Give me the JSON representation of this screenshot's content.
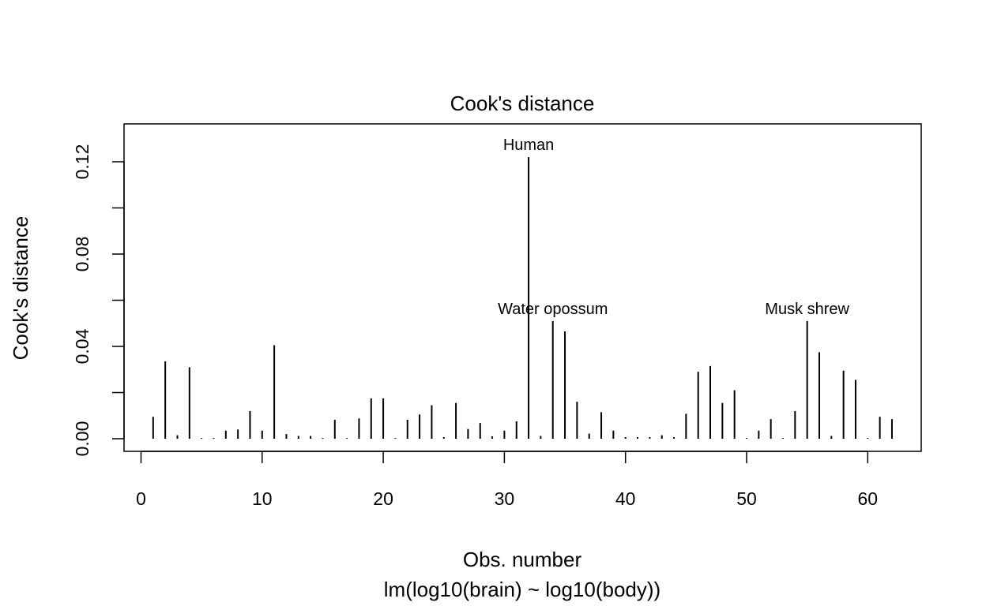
{
  "chart_data": {
    "type": "bar",
    "title": "Cook's distance",
    "xlabel": "Obs. number",
    "subtitle": "lm(log10(brain) ~ log10(body))",
    "ylabel": "Cook's distance",
    "xlim": [
      0,
      62
    ],
    "ylim": [
      0,
      0.12
    ],
    "xticks": [
      0,
      10,
      20,
      30,
      40,
      50,
      60
    ],
    "yticks": [
      0.0,
      0.04,
      0.08,
      0.12
    ],
    "ytick_labels": [
      "0.00",
      "0.04",
      "0.08",
      "0.12"
    ],
    "yminor_ticks": [
      0.02,
      0.06,
      0.1
    ],
    "grid": false,
    "x": [
      1,
      2,
      3,
      4,
      5,
      6,
      7,
      8,
      9,
      10,
      11,
      12,
      13,
      14,
      15,
      16,
      17,
      18,
      19,
      20,
      21,
      22,
      23,
      24,
      25,
      26,
      27,
      28,
      29,
      30,
      31,
      32,
      33,
      34,
      35,
      36,
      37,
      38,
      39,
      40,
      41,
      42,
      43,
      44,
      45,
      46,
      47,
      48,
      49,
      50,
      51,
      52,
      53,
      54,
      55,
      56,
      57,
      58,
      59,
      60,
      61,
      62
    ],
    "values": [
      0.0095,
      0.0335,
      0.0015,
      0.031,
      0.0003,
      0.0003,
      0.0035,
      0.004,
      0.012,
      0.0035,
      0.0405,
      0.002,
      0.0012,
      0.0012,
      0.0003,
      0.0082,
      0.0003,
      0.0088,
      0.0175,
      0.0175,
      0.0003,
      0.0082,
      0.0105,
      0.0145,
      0.0007,
      0.0155,
      0.0042,
      0.0068,
      0.001,
      0.0035,
      0.0075,
      0.122,
      0.0012,
      0.051,
      0.0465,
      0.016,
      0.0022,
      0.0115,
      0.0035,
      0.0007,
      0.0007,
      0.0007,
      0.0015,
      0.0007,
      0.0108,
      0.029,
      0.0315,
      0.0155,
      0.021,
      0.0003,
      0.0035,
      0.0085,
      0.0003,
      0.012,
      0.051,
      0.0375,
      0.0012,
      0.0295,
      0.0255,
      0.0003,
      0.0095,
      0.0085
    ],
    "annotations": [
      {
        "label": "Human",
        "x": 32,
        "y": 0.122
      },
      {
        "label": "Water opossum",
        "x": 34,
        "y": 0.051
      },
      {
        "label": "Musk shrew",
        "x": 55,
        "y": 0.051
      }
    ]
  }
}
